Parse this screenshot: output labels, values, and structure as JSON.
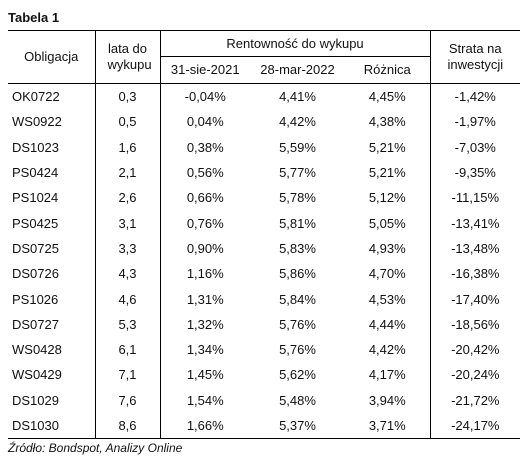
{
  "title": "Tabela 1",
  "table": {
    "headers": {
      "bond": "Obligacja",
      "years": "lata do wykupu",
      "yield_group": "Rentowność do wykupu",
      "yield_cols": [
        "31-sie-2021",
        "28-mar-2022",
        "Różnica"
      ],
      "loss": "Strata na inwestycji"
    },
    "rows": [
      [
        "OK0722",
        "0,3",
        "-0,04%",
        "4,41%",
        "4,45%",
        "-1,42%"
      ],
      [
        "WS0922",
        "0,5",
        "0,04%",
        "4,42%",
        "4,38%",
        "-1,97%"
      ],
      [
        "DS1023",
        "1,6",
        "0,38%",
        "5,59%",
        "5,21%",
        "-7,03%"
      ],
      [
        "PS0424",
        "2,1",
        "0,56%",
        "5,77%",
        "5,21%",
        "-9,35%"
      ],
      [
        "PS1024",
        "2,6",
        "0,66%",
        "5,78%",
        "5,12%",
        "-11,15%"
      ],
      [
        "PS0425",
        "3,1",
        "0,76%",
        "5,81%",
        "5,05%",
        "-13,41%"
      ],
      [
        "DS0725",
        "3,3",
        "0,90%",
        "5,83%",
        "4,93%",
        "-13,48%"
      ],
      [
        "DS0726",
        "4,3",
        "1,16%",
        "5,86%",
        "4,70%",
        "-16,38%"
      ],
      [
        "PS1026",
        "4,6",
        "1,31%",
        "5,84%",
        "4,53%",
        "-17,40%"
      ],
      [
        "DS0727",
        "5,3",
        "1,32%",
        "5,76%",
        "4,44%",
        "-18,56%"
      ],
      [
        "WS0428",
        "6,1",
        "1,34%",
        "5,76%",
        "4,42%",
        "-20,42%"
      ],
      [
        "WS0429",
        "7,1",
        "1,45%",
        "5,62%",
        "4,17%",
        "-20,24%"
      ],
      [
        "DS1029",
        "7,6",
        "1,54%",
        "5,48%",
        "3,94%",
        "-21,72%"
      ],
      [
        "DS1030",
        "8,6",
        "1,66%",
        "5,37%",
        "3,71%",
        "-24,17%"
      ]
    ]
  },
  "source": "Źródło: Bondspot, Analizy Online"
}
